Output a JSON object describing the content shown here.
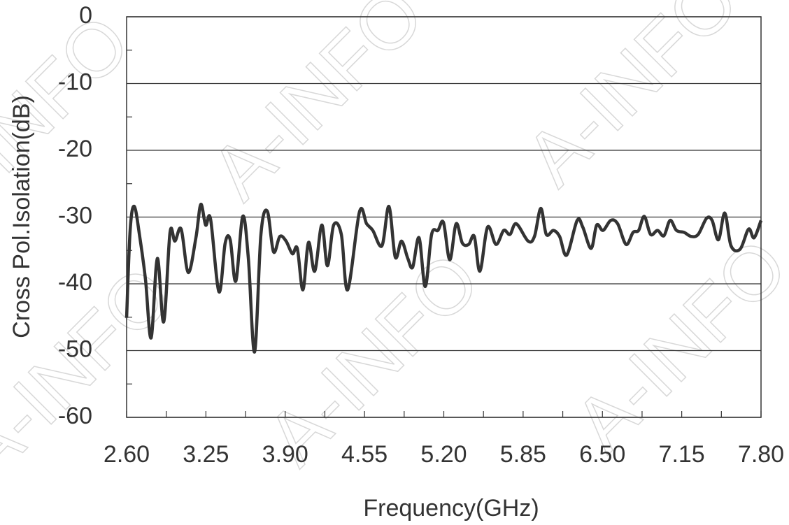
{
  "chart_data": {
    "type": "line",
    "watermark": "A-INFO",
    "xlabel": "Frequency(GHz)",
    "ylabel": "Cross Pol.Isolation(dB)",
    "xlim": [
      2.6,
      7.8
    ],
    "ylim": [
      -60,
      0
    ],
    "xticks": [
      {
        "value": 2.6,
        "label": "2.60"
      },
      3.25,
      {
        "value": 3.9,
        "label": "3.90"
      },
      4.55,
      {
        "value": 5.2,
        "label": "5.20"
      },
      5.85,
      {
        "value": 6.5,
        "label": "6.50"
      },
      7.15,
      {
        "value": 7.8,
        "label": "7.80"
      }
    ],
    "yticks": [
      0,
      -10,
      -20,
      -30,
      -40,
      -50,
      -60
    ],
    "grid": true,
    "series": [
      {
        "color": "#333333",
        "x": [
          2.6,
          2.629,
          2.663,
          2.709,
          2.755,
          2.801,
          2.852,
          2.904,
          2.956,
          2.996,
          3.047,
          3.105,
          3.168,
          3.208,
          3.248,
          3.288,
          3.357,
          3.408,
          3.449,
          3.495,
          3.552,
          3.598,
          3.649,
          3.701,
          3.753,
          3.804,
          3.856,
          3.907,
          3.959,
          3.999,
          4.045,
          4.091,
          4.142,
          4.2,
          4.246,
          4.297,
          4.36,
          4.412,
          4.509,
          4.567,
          4.618,
          4.693,
          4.75,
          4.802,
          4.853,
          4.905,
          4.945,
          4.997,
          5.048,
          5.1,
          5.152,
          5.197,
          5.249,
          5.301,
          5.352,
          5.404,
          5.45,
          5.496,
          5.559,
          5.628,
          5.691,
          5.742,
          5.794,
          5.891,
          5.943,
          5.995,
          6.04,
          6.098,
          6.149,
          6.207,
          6.293,
          6.339,
          6.407,
          6.453,
          6.505,
          6.568,
          6.625,
          6.694,
          6.751,
          6.797,
          6.843,
          6.895,
          6.952,
          7.004,
          7.055,
          7.107,
          7.17,
          7.227,
          7.285,
          7.353,
          7.399,
          7.451,
          7.503,
          7.554,
          7.629,
          7.698,
          7.743,
          7.8
        ],
        "values": [
          -45.1,
          -32,
          -28.4,
          -33.1,
          -39.4,
          -48.1,
          -36.2,
          -45.7,
          -32.3,
          -33.6,
          -31.8,
          -38.3,
          -33.1,
          -28.1,
          -31.2,
          -30.3,
          -41.2,
          -33.9,
          -33.4,
          -39.6,
          -29.9,
          -36.2,
          -50.2,
          -32.6,
          -29.1,
          -35.2,
          -32.9,
          -33.6,
          -35.5,
          -34.7,
          -40.9,
          -33.8,
          -38.1,
          -31.2,
          -37.3,
          -31.2,
          -32.6,
          -40.9,
          -29.2,
          -31,
          -32,
          -34.3,
          -28.4,
          -36,
          -33.6,
          -36.2,
          -37.5,
          -33.1,
          -40.4,
          -32.6,
          -32,
          -30.8,
          -36.4,
          -31,
          -33.9,
          -34.1,
          -32.9,
          -38.1,
          -31.5,
          -34.1,
          -32,
          -32.6,
          -31,
          -33.6,
          -32.9,
          -28.7,
          -32.6,
          -32,
          -32.9,
          -35.7,
          -30.5,
          -31.5,
          -34.7,
          -31.2,
          -32,
          -30.5,
          -31,
          -34.1,
          -32.3,
          -32,
          -29.9,
          -32.6,
          -32,
          -32.8,
          -30.5,
          -32,
          -32.3,
          -32.9,
          -32.6,
          -30.2,
          -30.5,
          -33.4,
          -29.4,
          -34.3,
          -34.8,
          -31.8,
          -33.1,
          -30.5
        ]
      }
    ]
  }
}
